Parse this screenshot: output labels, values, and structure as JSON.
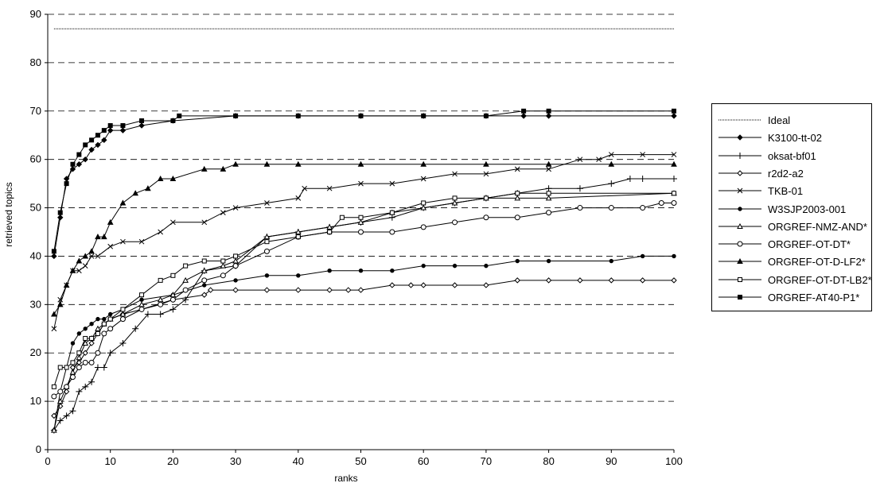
{
  "chart_data": {
    "type": "line",
    "xlabel": "ranks",
    "ylabel": "retrieved topics",
    "xlim": [
      0,
      100
    ],
    "ylim": [
      0,
      90
    ],
    "xticks": [
      0,
      10,
      20,
      30,
      40,
      50,
      60,
      70,
      80,
      90,
      100
    ],
    "yticks": [
      0,
      10,
      20,
      30,
      40,
      50,
      60,
      70,
      80,
      90
    ],
    "grid": "horizontal dashed",
    "legend_position": "right",
    "series": [
      {
        "name": "Ideal",
        "marker": "none",
        "style": "dotted",
        "x": [
          1,
          100
        ],
        "y": [
          87,
          87
        ]
      },
      {
        "name": "K3100-tt-02",
        "marker": "diamond-filled",
        "x": [
          1,
          2,
          3,
          4,
          5,
          6,
          7,
          8,
          9,
          10,
          12,
          15,
          20,
          30,
          40,
          50,
          60,
          70,
          76,
          80,
          100
        ],
        "y": [
          40,
          48,
          56,
          58,
          59,
          60,
          62,
          63,
          64,
          66,
          66,
          67,
          68,
          69,
          69,
          69,
          69,
          69,
          69,
          69,
          69
        ]
      },
      {
        "name": "oksat-bf01",
        "marker": "plus",
        "x": [
          1,
          2,
          3,
          4,
          5,
          6,
          7,
          8,
          9,
          10,
          12,
          14,
          16,
          18,
          20,
          22,
          25,
          30,
          35,
          40,
          45,
          50,
          55,
          60,
          65,
          70,
          75,
          80,
          85,
          90,
          93,
          95,
          100
        ],
        "y": [
          4,
          6,
          7,
          8,
          12,
          13,
          14,
          17,
          17,
          20,
          22,
          25,
          28,
          28,
          29,
          31,
          37,
          38,
          44,
          45,
          46,
          47,
          48,
          50,
          51,
          52,
          53,
          54,
          54,
          55,
          56,
          56,
          56
        ]
      },
      {
        "name": "r2d2-a2",
        "marker": "diamond-open",
        "x": [
          1,
          2,
          3,
          4,
          5,
          6,
          7,
          8,
          9,
          10,
          12,
          15,
          20,
          25,
          26,
          30,
          35,
          40,
          45,
          48,
          50,
          55,
          58,
          60,
          65,
          70,
          75,
          80,
          85,
          90,
          95,
          100
        ],
        "y": [
          7,
          9,
          12,
          17,
          18,
          20,
          22,
          24,
          26,
          27,
          28,
          29,
          31,
          32,
          33,
          33,
          33,
          33,
          33,
          33,
          33,
          34,
          34,
          34,
          34,
          34,
          35,
          35,
          35,
          35,
          35,
          35
        ]
      },
      {
        "name": "TKB-01",
        "marker": "x",
        "x": [
          1,
          2,
          3,
          4,
          5,
          6,
          7,
          8,
          10,
          12,
          15,
          18,
          20,
          25,
          28,
          30,
          35,
          40,
          41,
          45,
          50,
          55,
          60,
          65,
          70,
          75,
          80,
          85,
          88,
          90,
          95,
          100
        ],
        "y": [
          25,
          31,
          34,
          37,
          37,
          38,
          40,
          40,
          42,
          43,
          43,
          45,
          47,
          47,
          49,
          50,
          51,
          52,
          54,
          54,
          55,
          55,
          56,
          57,
          57,
          58,
          58,
          60,
          60,
          61,
          61,
          61
        ]
      },
      {
        "name": "W3SJP2003-001",
        "marker": "dot",
        "x": [
          1,
          2,
          3,
          4,
          5,
          6,
          7,
          8,
          9,
          10,
          12,
          15,
          20,
          25,
          30,
          35,
          40,
          45,
          50,
          55,
          60,
          65,
          70,
          75,
          80,
          90,
          95,
          100
        ],
        "y": [
          4,
          12,
          17,
          22,
          24,
          25,
          26,
          27,
          27,
          28,
          29,
          31,
          32,
          34,
          35,
          36,
          36,
          37,
          37,
          37,
          38,
          38,
          38,
          39,
          39,
          39,
          40,
          40
        ]
      },
      {
        "name": "ORGREF-NMZ-AND*",
        "marker": "triangle-open",
        "x": [
          1,
          2,
          3,
          4,
          5,
          6,
          7,
          8,
          9,
          10,
          12,
          15,
          18,
          20,
          22,
          25,
          28,
          30,
          35,
          40,
          45,
          50,
          55,
          60,
          65,
          70,
          75,
          80,
          100
        ],
        "y": [
          4,
          10,
          13,
          16,
          19,
          22,
          23,
          25,
          26,
          27,
          28,
          30,
          31,
          32,
          35,
          37,
          38,
          39,
          44,
          45,
          46,
          47,
          49,
          50,
          51,
          52,
          52,
          52,
          53
        ]
      },
      {
        "name": "ORGREF-OT-DT*",
        "marker": "circle-open",
        "x": [
          1,
          2,
          3,
          4,
          5,
          6,
          7,
          8,
          9,
          10,
          12,
          15,
          18,
          20,
          22,
          25,
          28,
          30,
          35,
          40,
          45,
          50,
          55,
          60,
          65,
          70,
          75,
          80,
          85,
          90,
          95,
          98,
          100
        ],
        "y": [
          11,
          12,
          13,
          15,
          17,
          18,
          18,
          20,
          24,
          25,
          27,
          29,
          30,
          31,
          33,
          35,
          36,
          38,
          41,
          44,
          45,
          45,
          45,
          46,
          47,
          48,
          48,
          49,
          50,
          50,
          50,
          51,
          51
        ]
      },
      {
        "name": "ORGREF-OT-D-LF2*",
        "marker": "triangle-filled",
        "x": [
          1,
          2,
          3,
          4,
          5,
          6,
          7,
          8,
          9,
          10,
          12,
          14,
          16,
          18,
          20,
          25,
          28,
          30,
          35,
          40,
          50,
          60,
          70,
          80,
          90,
          100
        ],
        "y": [
          28,
          30,
          34,
          37,
          39,
          40,
          41,
          44,
          44,
          47,
          51,
          53,
          54,
          56,
          56,
          58,
          58,
          59,
          59,
          59,
          59,
          59,
          59,
          59,
          59,
          59
        ]
      },
      {
        "name": "ORGREF-OT-DT-LB2*",
        "marker": "square-open",
        "x": [
          1,
          2,
          3,
          4,
          5,
          6,
          7,
          8,
          9,
          10,
          12,
          15,
          18,
          20,
          22,
          25,
          28,
          30,
          35,
          40,
          45,
          47,
          50,
          55,
          60,
          65,
          70,
          75,
          80,
          100
        ],
        "y": [
          13,
          17,
          17,
          18,
          20,
          23,
          23,
          24,
          26,
          27,
          29,
          32,
          35,
          36,
          38,
          39,
          39,
          40,
          43,
          44,
          45,
          48,
          48,
          49,
          51,
          52,
          52,
          53,
          53,
          53
        ]
      },
      {
        "name": "ORGREF-AT40-P1*",
        "marker": "square-filled",
        "x": [
          1,
          2,
          3,
          4,
          5,
          6,
          7,
          8,
          9,
          10,
          12,
          15,
          20,
          21,
          30,
          40,
          50,
          60,
          70,
          76,
          80,
          100
        ],
        "y": [
          41,
          49,
          55,
          59,
          61,
          63,
          64,
          65,
          66,
          67,
          67,
          68,
          68,
          69,
          69,
          69,
          69,
          69,
          69,
          70,
          70,
          70
        ]
      }
    ]
  }
}
